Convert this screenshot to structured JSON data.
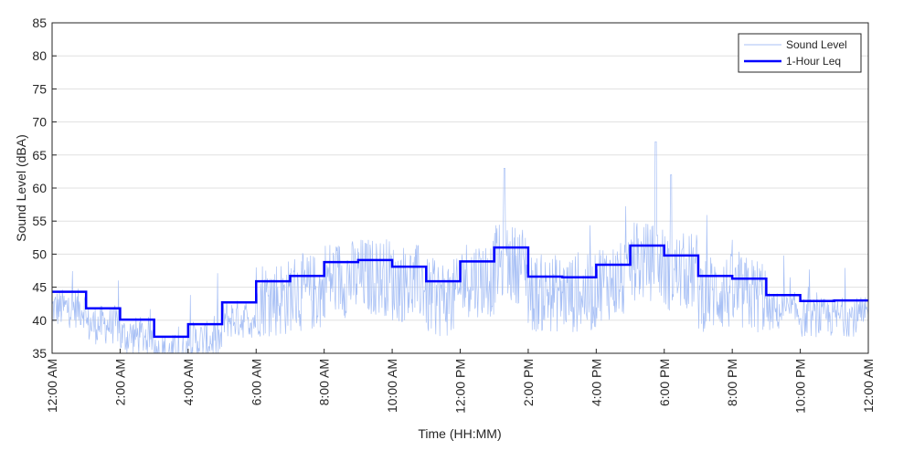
{
  "chart_data": {
    "type": "line",
    "title": "",
    "xlabel": "Time (HH:MM)",
    "ylabel": "Sound Level (dBA)",
    "xlim_hours": [
      0,
      24
    ],
    "ylim": [
      35,
      85
    ],
    "yticks": [
      35,
      40,
      45,
      50,
      55,
      60,
      65,
      70,
      75,
      80,
      85
    ],
    "xtick_hours": [
      0,
      2,
      4,
      6,
      8,
      10,
      12,
      14,
      16,
      18,
      20,
      22,
      24
    ],
    "xtick_labels": [
      "12:00 AM",
      "2:00 AM",
      "4:00 AM",
      "6:00 AM",
      "8:00 AM",
      "10:00 AM",
      "12:00 PM",
      "2:00 PM",
      "4:00 PM",
      "6:00 PM",
      "8:00 PM",
      "10:00 PM",
      "12:00 AM"
    ],
    "grid": "horizontal",
    "legend_position": "top-right",
    "series": [
      {
        "name": "Sound Level",
        "color": "#a8c0f5",
        "style": "thin-noisy",
        "notable_peaks": [
          {
            "hour": 13.3,
            "value": 63
          },
          {
            "hour": 17.75,
            "value": 67
          },
          {
            "hour": 18.2,
            "value": 62
          }
        ]
      },
      {
        "name": "1-Hour Leq",
        "color": "#0000ff",
        "style": "step",
        "hour_start": [
          0,
          1,
          2,
          3,
          4,
          5,
          6,
          7,
          8,
          9,
          10,
          11,
          12,
          13,
          14,
          15,
          16,
          17,
          18,
          19,
          20,
          21,
          22,
          23
        ],
        "values": [
          44.3,
          41.8,
          40.1,
          37.5,
          39.4,
          42.7,
          45.9,
          46.7,
          48.8,
          49.1,
          48.1,
          45.9,
          48.9,
          51.0,
          46.6,
          46.5,
          48.4,
          51.3,
          49.8,
          46.7,
          46.3,
          43.8,
          42.9,
          43.0
        ]
      }
    ]
  }
}
